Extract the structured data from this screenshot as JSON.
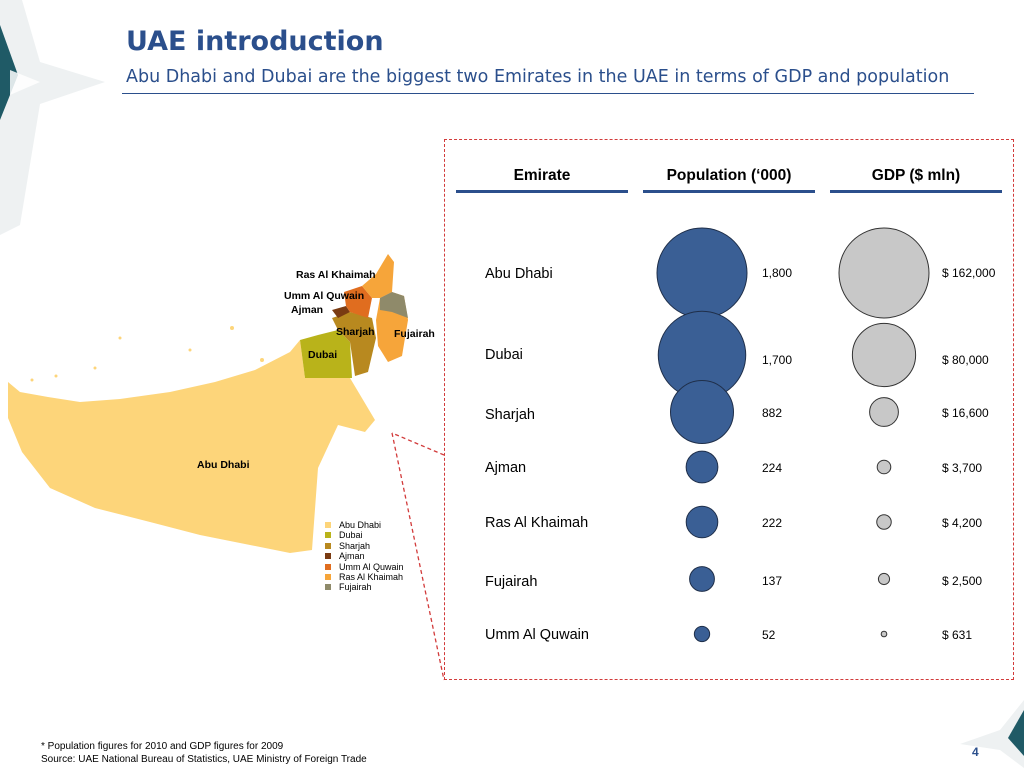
{
  "slide": {
    "title": "UAE introduction",
    "subtitle": "Abu Dhabi and Dubai are the biggest two Emirates in the UAE in terms of GDP and population",
    "footnote": "* Population figures for 2010 and GDP figures for 2009",
    "source": "Source: UAE National Bureau of Statistics, UAE Ministry of Foreign Trade",
    "page_number": "4"
  },
  "colors": {
    "title": "#2b4f8c",
    "population_bubble": "#3a5f95",
    "gdp_bubble": "#c8c8c8",
    "frame": "#d23b3b"
  },
  "map": {
    "labels": {
      "ras_al_khaimah": "Ras Al Khaimah",
      "umm_al_quwain": "Umm Al Quwain",
      "ajman": "Ajman",
      "sharjah": "Sharjah",
      "fujairah": "Fujairah",
      "dubai": "Dubai",
      "abu_dhabi": "Abu Dhabi"
    },
    "legend": [
      {
        "label": "Abu Dhabi",
        "color": "#fdd57a"
      },
      {
        "label": "Dubai",
        "color": "#b9b31a"
      },
      {
        "label": "Sharjah",
        "color": "#b8891f"
      },
      {
        "label": "Ajman",
        "color": "#7a3b12"
      },
      {
        "label": "Umm Al Quwain",
        "color": "#e06d1f"
      },
      {
        "label": "Ras Al Khaimah",
        "color": "#f6a53a"
      },
      {
        "label": "Fujairah",
        "color": "#8f8a6a"
      }
    ]
  },
  "chart_data": {
    "type": "table",
    "columns": [
      "Emirate",
      "Population (‘000)",
      "GDP ($ mln)"
    ],
    "rows": [
      {
        "emirate": "Abu Dhabi",
        "population": 1800,
        "population_label": "1,800",
        "gdp": 162000,
        "gdp_label": "$ 162,000"
      },
      {
        "emirate": "Dubai",
        "population": 1700,
        "population_label": "1,700",
        "gdp": 80000,
        "gdp_label": "$ 80,000"
      },
      {
        "emirate": "Sharjah",
        "population": 882,
        "population_label": "882",
        "gdp": 16600,
        "gdp_label": "$ 16,600"
      },
      {
        "emirate": "Ajman",
        "population": 224,
        "population_label": "224",
        "gdp": 3700,
        "gdp_label": "$ 3,700"
      },
      {
        "emirate": "Ras Al Khaimah",
        "population": 222,
        "population_label": "222",
        "gdp": 4200,
        "gdp_label": "$ 4,200"
      },
      {
        "emirate": "Fujairah",
        "population": 137,
        "population_label": "137",
        "gdp": 2500,
        "gdp_label": "$ 2,500"
      },
      {
        "emirate": "Umm Al Quwain",
        "population": 52,
        "population_label": "52",
        "gdp": 631,
        "gdp_label": "$ 631"
      }
    ]
  }
}
